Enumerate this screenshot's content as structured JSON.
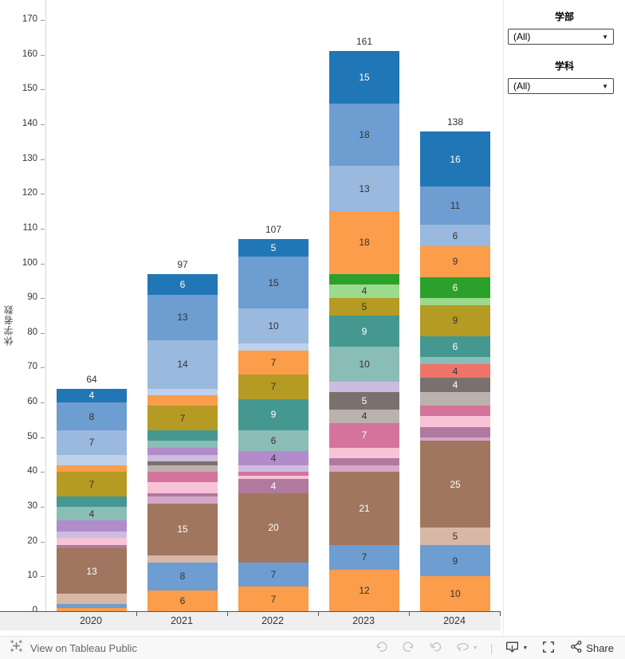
{
  "filters": [
    {
      "label": "学部",
      "value": "(All)"
    },
    {
      "label": "学科",
      "value": "(All)"
    }
  ],
  "toolbar": {
    "view_label": "View on Tableau Public",
    "share_label": "Share",
    "icons": [
      "tableau-logo-icon",
      "undo-icon",
      "redo-icon",
      "revert-icon",
      "refresh-icon",
      "download-icon",
      "fullscreen-icon",
      "share-icon"
    ]
  },
  "chart_data": {
    "type": "bar",
    "stacked": true,
    "title": "",
    "xlabel": "",
    "ylabel": "休学者数",
    "ylim": [
      0,
      170
    ],
    "ytick_step": 10,
    "grid": false,
    "legend": "none",
    "categories": [
      "2020",
      "2021",
      "2022",
      "2023",
      "2024"
    ],
    "totals": [
      64,
      97,
      107,
      161,
      138
    ],
    "colors": {
      "darkBlue": "#2176b5",
      "medBlue": "#6d9dd1",
      "blueGray": "#9ab9de",
      "paleBlue": "#bdd2ea",
      "orange": "#fb9d4a",
      "olive": "#b59b23",
      "teal": "#45988f",
      "ltTeal": "#8abdb6",
      "darkGreen": "#2ba02b",
      "ltGreen": "#9bdb8d",
      "coral": "#ee746a",
      "medPurple": "#b28cca",
      "paleLav": "#ccbce0",
      "orchid": "#b1799e",
      "ltOrchid": "#d5a7c8",
      "darkPink": "#d4739b",
      "ltPink": "#f8c3d6",
      "taupe": "#bbb1ad",
      "darkGray": "#7a716f",
      "brown": "#a0765f",
      "tan": "#d9b7a7"
    },
    "bars": [
      {
        "category": "2020",
        "total": 64,
        "segments_top_to_bottom": [
          {
            "c": "darkBlue",
            "v": 4,
            "show": true,
            "t": "w"
          },
          {
            "c": "medBlue",
            "v": 8,
            "show": true,
            "t": "d"
          },
          {
            "c": "blueGray",
            "v": 7,
            "show": true,
            "t": "d"
          },
          {
            "c": "paleBlue",
            "v": 3,
            "show": false,
            "t": "d"
          },
          {
            "c": "orange",
            "v": 2,
            "show": false,
            "t": "d"
          },
          {
            "c": "olive",
            "v": 7,
            "show": true,
            "t": "d"
          },
          {
            "c": "teal",
            "v": 3,
            "show": false,
            "t": "w"
          },
          {
            "c": "ltTeal",
            "v": 4,
            "show": true,
            "t": "d"
          },
          {
            "c": "medPurple",
            "v": 3,
            "show": false,
            "t": "d"
          },
          {
            "c": "paleLav",
            "v": 2,
            "show": false,
            "t": "d"
          },
          {
            "c": "ltPink",
            "v": 2,
            "show": false,
            "t": "d"
          },
          {
            "c": "orchid",
            "v": 1,
            "show": false,
            "t": "w"
          },
          {
            "c": "brown",
            "v": 13,
            "show": true,
            "t": "w"
          },
          {
            "c": "tan",
            "v": 3,
            "show": false,
            "t": "d"
          },
          {
            "c": "medBlue",
            "v": 1,
            "show": false,
            "t": "d"
          },
          {
            "c": "orange",
            "v": 1,
            "show": false,
            "t": "d"
          }
        ]
      },
      {
        "category": "2021",
        "total": 97,
        "segments_top_to_bottom": [
          {
            "c": "darkBlue",
            "v": 6,
            "show": true,
            "t": "w"
          },
          {
            "c": "medBlue",
            "v": 13,
            "show": true,
            "t": "d"
          },
          {
            "c": "blueGray",
            "v": 14,
            "show": true,
            "t": "d"
          },
          {
            "c": "paleBlue",
            "v": 2,
            "show": false,
            "t": "d"
          },
          {
            "c": "orange",
            "v": 3,
            "show": false,
            "t": "d"
          },
          {
            "c": "olive",
            "v": 7,
            "show": true,
            "t": "d"
          },
          {
            "c": "teal",
            "v": 3,
            "show": false,
            "t": "w"
          },
          {
            "c": "ltTeal",
            "v": 2,
            "show": false,
            "t": "d"
          },
          {
            "c": "medPurple",
            "v": 2,
            "show": false,
            "t": "d"
          },
          {
            "c": "paleLav",
            "v": 2,
            "show": false,
            "t": "d"
          },
          {
            "c": "darkGray",
            "v": 1,
            "show": false,
            "t": "w"
          },
          {
            "c": "taupe",
            "v": 2,
            "show": false,
            "t": "d"
          },
          {
            "c": "darkPink",
            "v": 3,
            "show": false,
            "t": "w"
          },
          {
            "c": "ltPink",
            "v": 3,
            "show": false,
            "t": "d"
          },
          {
            "c": "orchid",
            "v": 1,
            "show": false,
            "t": "w"
          },
          {
            "c": "ltOrchid",
            "v": 2,
            "show": false,
            "t": "d"
          },
          {
            "c": "brown",
            "v": 15,
            "show": true,
            "t": "w"
          },
          {
            "c": "tan",
            "v": 2,
            "show": false,
            "t": "d"
          },
          {
            "c": "medBlue",
            "v": 8,
            "show": true,
            "t": "d"
          },
          {
            "c": "orange",
            "v": 6,
            "show": true,
            "t": "d"
          }
        ]
      },
      {
        "category": "2022",
        "total": 107,
        "segments_top_to_bottom": [
          {
            "c": "darkBlue",
            "v": 5,
            "show": true,
            "t": "w"
          },
          {
            "c": "medBlue",
            "v": 15,
            "show": true,
            "t": "d"
          },
          {
            "c": "blueGray",
            "v": 10,
            "show": true,
            "t": "d"
          },
          {
            "c": "paleBlue",
            "v": 2,
            "show": false,
            "t": "d"
          },
          {
            "c": "orange",
            "v": 7,
            "show": true,
            "t": "d"
          },
          {
            "c": "olive",
            "v": 7,
            "show": true,
            "t": "d"
          },
          {
            "c": "teal",
            "v": 9,
            "show": true,
            "t": "w"
          },
          {
            "c": "ltTeal",
            "v": 6,
            "show": true,
            "t": "d"
          },
          {
            "c": "medPurple",
            "v": 4,
            "show": true,
            "t": "d"
          },
          {
            "c": "paleLav",
            "v": 2,
            "show": false,
            "t": "d"
          },
          {
            "c": "darkPink",
            "v": 1,
            "show": false,
            "t": "w"
          },
          {
            "c": "ltPink",
            "v": 1,
            "show": false,
            "t": "d"
          },
          {
            "c": "orchid",
            "v": 4,
            "show": true,
            "t": "w"
          },
          {
            "c": "brown",
            "v": 20,
            "show": true,
            "t": "w"
          },
          {
            "c": "medBlue",
            "v": 7,
            "show": true,
            "t": "d"
          },
          {
            "c": "orange",
            "v": 7,
            "show": true,
            "t": "d"
          }
        ]
      },
      {
        "category": "2023",
        "total": 161,
        "segments_top_to_bottom": [
          {
            "c": "darkBlue",
            "v": 15,
            "show": true,
            "t": "w"
          },
          {
            "c": "medBlue",
            "v": 18,
            "show": true,
            "t": "d"
          },
          {
            "c": "blueGray",
            "v": 13,
            "show": true,
            "t": "d"
          },
          {
            "c": "orange",
            "v": 18,
            "show": true,
            "t": "d"
          },
          {
            "c": "darkGreen",
            "v": 3,
            "show": false,
            "t": "w"
          },
          {
            "c": "ltGreen",
            "v": 4,
            "show": true,
            "t": "d"
          },
          {
            "c": "olive",
            "v": 5,
            "show": true,
            "t": "d"
          },
          {
            "c": "teal",
            "v": 9,
            "show": true,
            "t": "w"
          },
          {
            "c": "ltTeal",
            "v": 10,
            "show": true,
            "t": "d"
          },
          {
            "c": "paleLav",
            "v": 3,
            "show": false,
            "t": "d"
          },
          {
            "c": "darkGray",
            "v": 5,
            "show": true,
            "t": "w"
          },
          {
            "c": "taupe",
            "v": 4,
            "show": true,
            "t": "d"
          },
          {
            "c": "darkPink",
            "v": 7,
            "show": true,
            "t": "w"
          },
          {
            "c": "ltPink",
            "v": 3,
            "show": false,
            "t": "d"
          },
          {
            "c": "orchid",
            "v": 2,
            "show": false,
            "t": "w"
          },
          {
            "c": "ltOrchid",
            "v": 2,
            "show": false,
            "t": "d"
          },
          {
            "c": "brown",
            "v": 21,
            "show": true,
            "t": "w"
          },
          {
            "c": "medBlue",
            "v": 7,
            "show": true,
            "t": "d"
          },
          {
            "c": "orange",
            "v": 12,
            "show": true,
            "t": "d"
          }
        ]
      },
      {
        "category": "2024",
        "total": 138,
        "segments_top_to_bottom": [
          {
            "c": "darkBlue",
            "v": 16,
            "show": true,
            "t": "w"
          },
          {
            "c": "medBlue",
            "v": 11,
            "show": true,
            "t": "d"
          },
          {
            "c": "blueGray",
            "v": 6,
            "show": true,
            "t": "d"
          },
          {
            "c": "orange",
            "v": 9,
            "show": true,
            "t": "d"
          },
          {
            "c": "darkGreen",
            "v": 6,
            "show": true,
            "t": "w"
          },
          {
            "c": "ltGreen",
            "v": 2,
            "show": false,
            "t": "d"
          },
          {
            "c": "olive",
            "v": 9,
            "show": true,
            "t": "d"
          },
          {
            "c": "teal",
            "v": 6,
            "show": true,
            "t": "w"
          },
          {
            "c": "ltTeal",
            "v": 2,
            "show": false,
            "t": "d"
          },
          {
            "c": "coral",
            "v": 4,
            "show": true,
            "t": "d"
          },
          {
            "c": "darkGray",
            "v": 4,
            "show": true,
            "t": "w"
          },
          {
            "c": "taupe",
            "v": 4,
            "show": false,
            "t": "d"
          },
          {
            "c": "darkPink",
            "v": 3,
            "show": false,
            "t": "w"
          },
          {
            "c": "ltPink",
            "v": 3,
            "show": false,
            "t": "d"
          },
          {
            "c": "orchid",
            "v": 3,
            "show": false,
            "t": "w"
          },
          {
            "c": "ltOrchid",
            "v": 1,
            "show": false,
            "t": "d"
          },
          {
            "c": "brown",
            "v": 25,
            "show": true,
            "t": "w"
          },
          {
            "c": "tan",
            "v": 5,
            "show": true,
            "t": "d"
          },
          {
            "c": "medBlue",
            "v": 9,
            "show": true,
            "t": "d"
          },
          {
            "c": "orange",
            "v": 10,
            "show": true,
            "t": "d"
          }
        ]
      }
    ]
  }
}
